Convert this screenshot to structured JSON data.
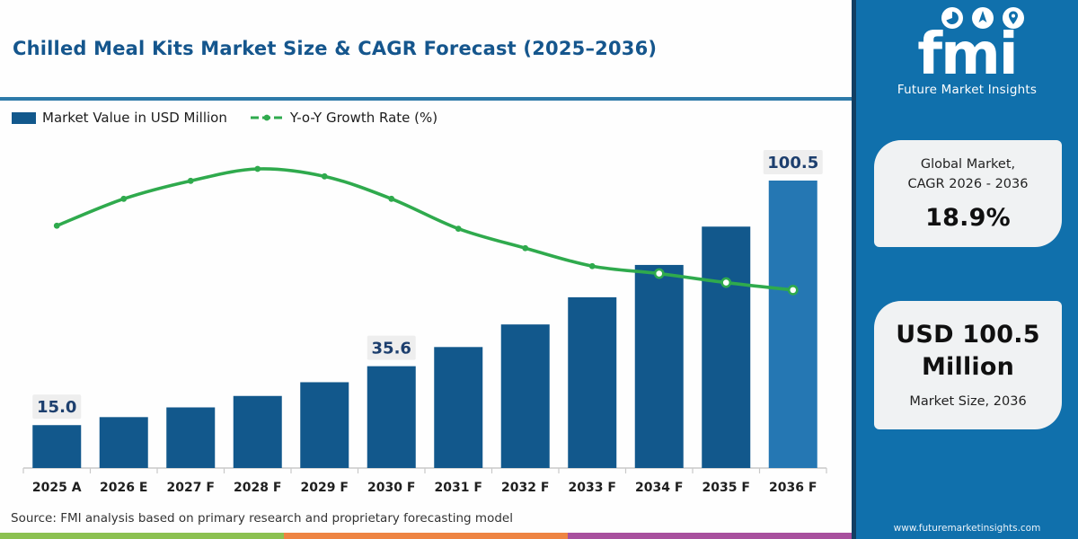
{
  "header": {
    "title": "Chilled Meal Kits Market Size & CAGR Forecast (2025–2036)"
  },
  "legend": {
    "bar_label": "Market Value in USD Million",
    "line_label": "Y-o-Y Growth Rate (%)"
  },
  "chart_data": {
    "type": "bar",
    "subtype": "bar+line combo",
    "title": "Chilled Meal Kits Market Size & CAGR Forecast (2025–2036)",
    "categories": [
      "2025 A",
      "2026 E",
      "2027 F",
      "2028 F",
      "2029 F",
      "2030 F",
      "2031 F",
      "2032 F",
      "2033 F",
      "2034 F",
      "2035 F",
      "2036 F"
    ],
    "series": [
      {
        "name": "Market Value in USD Million",
        "type": "bar",
        "unit": "USD Million",
        "values": [
          15.0,
          17.8,
          21.2,
          25.2,
          30.0,
          35.6,
          42.3,
          50.2,
          59.7,
          71.0,
          84.4,
          100.5
        ],
        "labeled_points": [
          {
            "index": 0,
            "label": "15.0"
          },
          {
            "index": 5,
            "label": "35.6"
          },
          {
            "index": 11,
            "label": "100.5"
          }
        ]
      },
      {
        "name": "Y-o-Y Growth Rate (%)",
        "type": "line",
        "unit": "%",
        "values": [
          16.2,
          18.0,
          19.2,
          20.0,
          19.5,
          18.0,
          16.0,
          14.7,
          13.5,
          13.0,
          12.4,
          11.9
        ],
        "open_marker_indices": [
          9,
          10,
          11
        ]
      }
    ],
    "ylim": [
      0,
      105
    ],
    "y2lim": [
      0,
      22
    ],
    "right_axis_visible": false,
    "grid": false,
    "legend_position": "top-left",
    "xlabel": "",
    "ylabel": ""
  },
  "colors": {
    "bar": "#12588c",
    "bar_highlight": "#2577b3",
    "line": "#2faa4d",
    "label_bg": "#eeeeee",
    "label_text": "#1d3f6e",
    "axis": "#c9c9c9",
    "x_label": "#1f1f1f",
    "divider": "#2d7aa9",
    "sidebar_bg": "#1070ac",
    "sidebar_edge": "#123f63"
  },
  "sidebar": {
    "logo": {
      "text": "fmi",
      "tagline": "Future Market Insights",
      "icons": [
        "pie-chart-icon",
        "compass-icon",
        "map-pin-icon"
      ]
    },
    "cards": [
      {
        "line1": "Global Market,",
        "line2": "CAGR 2026 - 2036",
        "value": "18.9%"
      },
      {
        "value": "USD 100.5 Million",
        "caption": "Market Size, 2036"
      }
    ],
    "website": "www.futuremarketinsights.com"
  },
  "footer": {
    "source": "Source: FMI analysis based on primary research and proprietary forecasting model",
    "strip_colors": [
      "#8cc151",
      "#ee8442",
      "#a8509e"
    ]
  }
}
